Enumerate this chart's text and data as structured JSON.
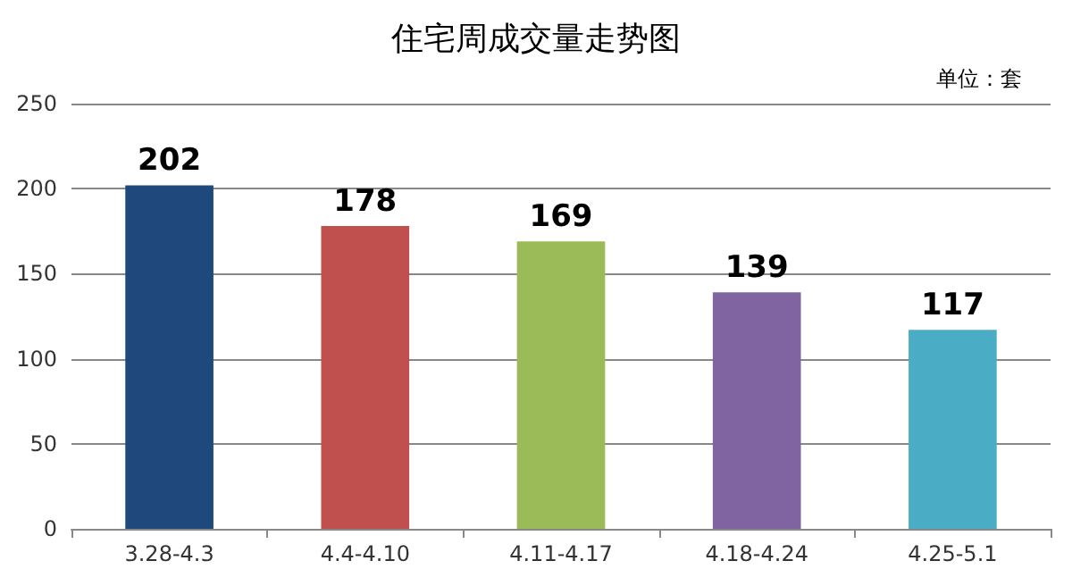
{
  "chart_data": {
    "type": "bar",
    "title": "住宅周成交量走势图",
    "annotations": [
      "单位：套"
    ],
    "categories": [
      "3.28-4.3",
      "4.4-4.10",
      "4.11-4.17",
      "4.18-4.24",
      "4.25-5.1"
    ],
    "values": [
      202,
      178,
      169,
      139,
      117
    ],
    "colors": [
      "#1f497d",
      "#c0504d",
      "#9bbb59",
      "#8064a2",
      "#4bacc6"
    ],
    "ylim": [
      0,
      250
    ],
    "yticks": [
      0,
      50,
      100,
      150,
      200,
      250
    ],
    "grid": "y",
    "data_labels": true
  }
}
